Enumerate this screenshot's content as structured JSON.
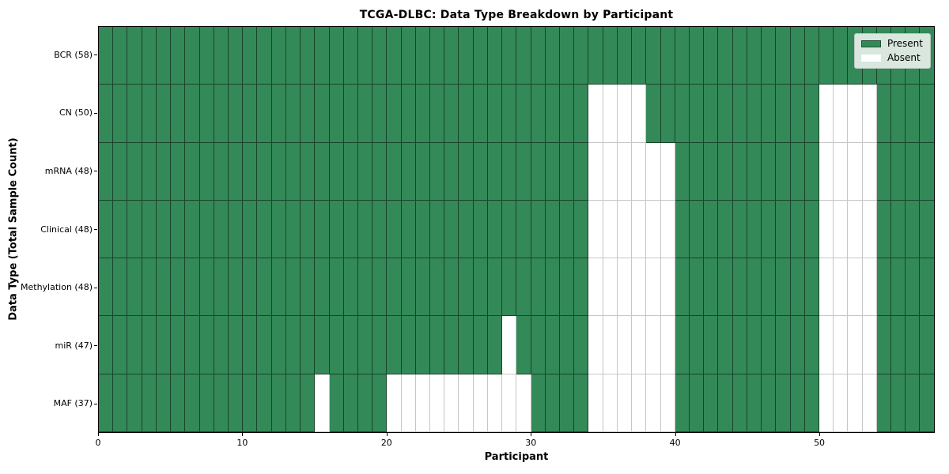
{
  "chart_data": {
    "type": "heatmap",
    "title": "TCGA-DLBC: Data Type Breakdown by Participant",
    "xlabel": "Participant",
    "ylabel": "Data Type (Total Sample Count)",
    "n_participants": 58,
    "xlim": [
      0,
      58
    ],
    "x_ticks": [
      0,
      10,
      20,
      30,
      40,
      50
    ],
    "legend_position": "upper-right",
    "grid": true,
    "colors": {
      "present": "#338957",
      "absent": "#ffffff"
    },
    "rows": [
      {
        "name": "BCR",
        "label": "BCR (58)",
        "total": 58,
        "absent": []
      },
      {
        "name": "CN",
        "label": "CN (50)",
        "total": 50,
        "absent": [
          34,
          35,
          36,
          37,
          50,
          51,
          52,
          53
        ]
      },
      {
        "name": "mRNA",
        "label": "mRNA (48)",
        "total": 48,
        "absent": [
          34,
          35,
          36,
          37,
          38,
          39,
          50,
          51,
          52,
          53
        ]
      },
      {
        "name": "Clinical",
        "label": "Clinical (48)",
        "total": 48,
        "absent": [
          34,
          35,
          36,
          37,
          38,
          39,
          50,
          51,
          52,
          53
        ]
      },
      {
        "name": "Methylation",
        "label": "Methylation (48)",
        "total": 48,
        "absent": [
          34,
          35,
          36,
          37,
          38,
          39,
          50,
          51,
          52,
          53
        ]
      },
      {
        "name": "miR",
        "label": "miR (47)",
        "total": 47,
        "absent": [
          28,
          34,
          35,
          36,
          37,
          38,
          39,
          50,
          51,
          52,
          53
        ]
      },
      {
        "name": "MAF",
        "label": "MAF (37)",
        "total": 37,
        "absent": [
          15,
          20,
          21,
          22,
          23,
          24,
          25,
          26,
          27,
          28,
          29,
          34,
          35,
          36,
          37,
          38,
          39,
          50,
          51,
          52,
          53
        ]
      }
    ],
    "legend": [
      {
        "label": "Present",
        "color": "#338957"
      },
      {
        "label": "Absent",
        "color": "#ffffff"
      }
    ]
  }
}
